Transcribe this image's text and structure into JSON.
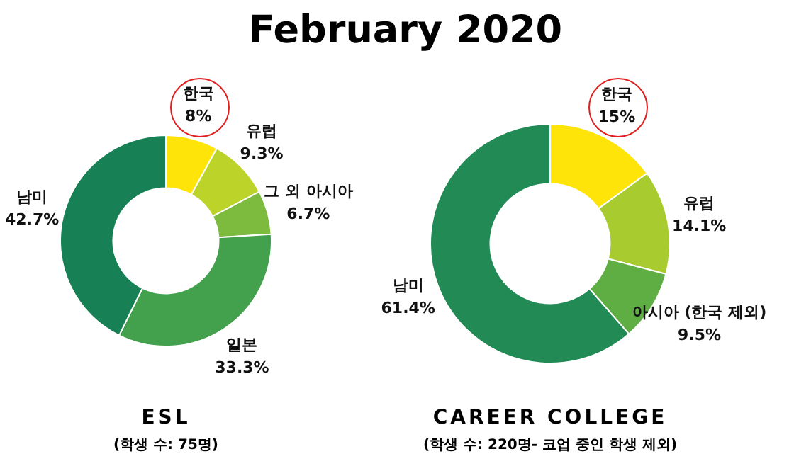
{
  "chart_data": [
    {
      "type": "other",
      "title": "February 2020"
    },
    {
      "type": "donut",
      "title": "ESL",
      "subtitle": "(학생 수: 75명)",
      "categories": [
        "한국",
        "유럽",
        "그 외 아시아",
        "일본",
        "남미"
      ],
      "values": [
        8,
        9.3,
        6.7,
        33.3,
        42.7
      ],
      "value_labels": [
        "8%",
        "9.3%",
        "6.7%",
        "33.3%",
        "42.7%"
      ],
      "colors": [
        "#ffe40a",
        "#bcd42a",
        "#7cbb3e",
        "#43a04c",
        "#188055"
      ],
      "legend": false
    },
    {
      "type": "donut",
      "title": "CAREER COLLEGE",
      "subtitle": "(학생 수: 220명- 코업 중인 학생 제외)",
      "categories": [
        "한국",
        "유럽",
        "아시아 (한국 제외)",
        "남미"
      ],
      "values": [
        15,
        14.1,
        9.5,
        61.4
      ],
      "value_labels": [
        "15%",
        "14.1%",
        "9.5%",
        "61.4%"
      ],
      "colors": [
        "#ffe40a",
        "#a8cc30",
        "#5fae44",
        "#218a55"
      ],
      "legend": false
    }
  ]
}
